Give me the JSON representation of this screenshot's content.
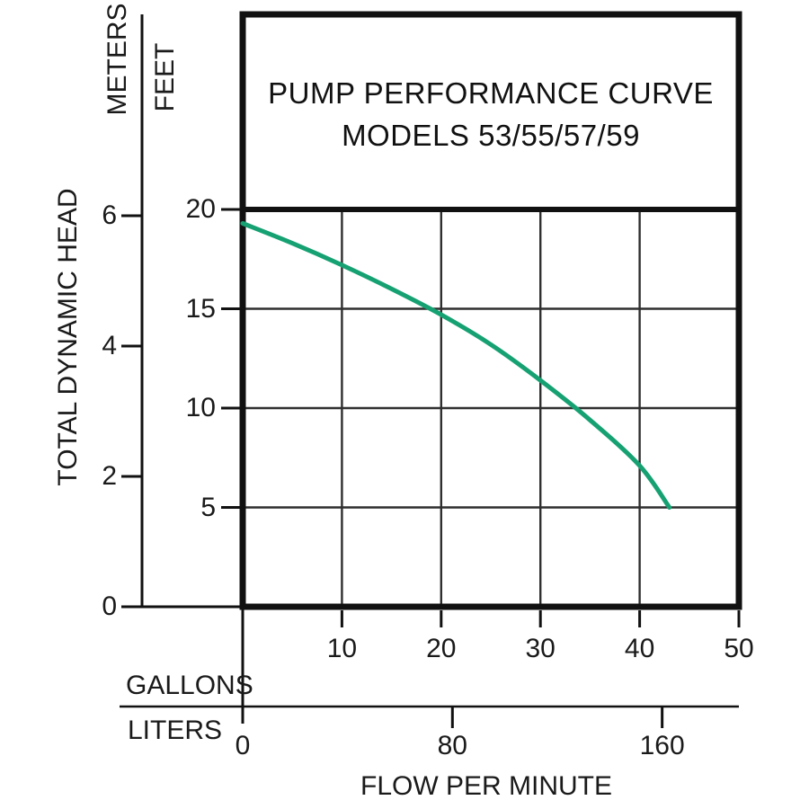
{
  "chart_data": {
    "type": "line",
    "title": "PUMP PERFORMANCE CURVE",
    "subtitle": "MODELS 53/55/57/59",
    "y_axis_group_title": "TOTAL DYNAMIC HEAD",
    "x_axis_group_title": "FLOW PER MINUTE",
    "axes": {
      "feet": {
        "label": "FEET",
        "ticks": [
          20,
          15,
          10,
          5
        ],
        "range": [
          0,
          20
        ]
      },
      "meters": {
        "label": "METERS",
        "ticks": [
          6,
          4,
          2,
          0
        ],
        "range": [
          0,
          6.1
        ]
      },
      "gallons": {
        "label": "GALLONS",
        "ticks": [
          10,
          20,
          30,
          40,
          50
        ],
        "range": [
          0,
          50
        ]
      },
      "liters": {
        "label": "LITERS",
        "ticks": [
          0,
          80,
          160
        ],
        "range": [
          0,
          189
        ]
      }
    },
    "grid": {
      "vertical_gallons": [
        10,
        20,
        30,
        40
      ],
      "horizontal_feet": [
        15,
        10,
        5
      ]
    },
    "series": [
      {
        "name": "pump-head-capacity-curve",
        "models": "53/55/57/59",
        "x_gallons": [
          0,
          5,
          10,
          15,
          20,
          25,
          30,
          35,
          40,
          43
        ],
        "y_feet": [
          19.3,
          18.3,
          17.2,
          16.0,
          14.7,
          13.2,
          11.4,
          9.4,
          7.1,
          5.0
        ]
      }
    ],
    "legend": "none",
    "colors": {
      "curve": "#16a172",
      "line": "#111111",
      "grid": "#2f2f2f",
      "text": "#1a1a1a",
      "background": "#ffffff"
    }
  }
}
